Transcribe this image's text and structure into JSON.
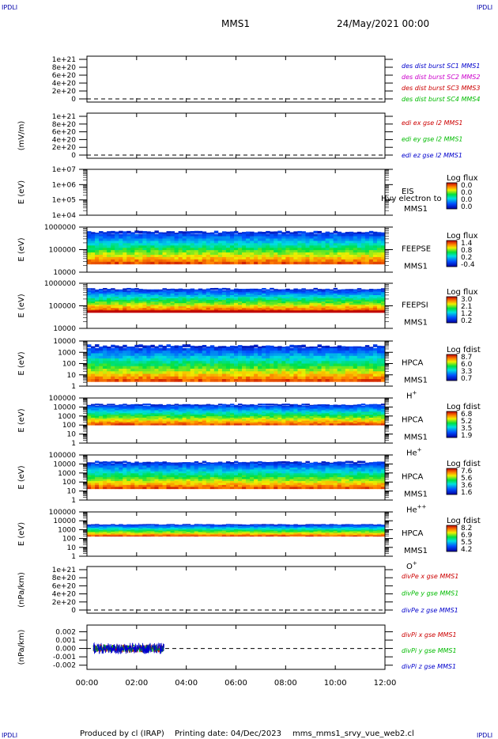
{
  "header": {
    "corner_label": "IPDLI",
    "mission": "MMS1",
    "date": "24/May/2021 00:00"
  },
  "footer": {
    "produced_by": "Produced by cl (IRAP)",
    "printing_date": "Printing date: 04/Dec/2023",
    "script": "mms_mms1_srvy_vue_web2.cl"
  },
  "chart_data": {
    "type": "multi-panel time series / spectrogram",
    "time_ticks": [
      "00:00",
      "02:00",
      "04:00",
      "06:00",
      "08:00",
      "10:00",
      "12:00"
    ],
    "x_range_hours": [
      0,
      12
    ],
    "panels": [
      {
        "id": "des",
        "kind": "line",
        "ylabel": "",
        "yticks": [
          "1e+21",
          "8e+20",
          "6e+20",
          "4e+20",
          "2e+20",
          "0"
        ],
        "legend": [
          {
            "label": "des dist burst SC1 MMS1",
            "color": "#0000cc"
          },
          {
            "label": "des dist burst SC2 MMS2",
            "color": "#cc00cc"
          },
          {
            "label": "des dist burst SC3 MMS3",
            "color": "#cc0000"
          },
          {
            "label": "des dist burst SC4 MMS4",
            "color": "#00bb00"
          }
        ],
        "zero_line": true
      },
      {
        "id": "edi",
        "kind": "line",
        "ylabel": "(mV/m)",
        "yticks": [
          "1e+21",
          "8e+20",
          "6e+20",
          "4e+20",
          "2e+20",
          "0"
        ],
        "legend": [
          {
            "label": "edi ex gse l2 MMS1",
            "color": "#cc0000"
          },
          {
            "label": "edi ey gse l2 MMS1",
            "color": "#00bb00"
          },
          {
            "label": "edi ez gse l2 MMS1",
            "color": "#0000cc"
          }
        ],
        "zero_line": true
      },
      {
        "id": "eis",
        "kind": "spectrogram",
        "ylabel": "E (eV)",
        "yticks": [
          "1e+07",
          "1e+06",
          "1e+05",
          "1e+04"
        ],
        "instrument": "EIS",
        "species_note": "Hvy electron to",
        "sc": "MMS1",
        "cbar_title": "Log flux",
        "cbar_ticks": [
          "0.0",
          "0.0",
          "0.0",
          "0.0"
        ],
        "band": null
      },
      {
        "id": "feepse",
        "kind": "spectrogram",
        "ylabel": "E (eV)",
        "yticks": [
          "1000000",
          "100000",
          "10000"
        ],
        "instrument": "FEEPSE",
        "sc": "MMS1",
        "cbar_title": "Log flux",
        "cbar_ticks": [
          "1.4",
          "0.8",
          "0.2",
          "-0.4"
        ],
        "band": [
          0.1,
          0.82
        ]
      },
      {
        "id": "feepsi",
        "kind": "spectrogram",
        "ylabel": "E (eV)",
        "yticks": [
          "1000000",
          "100000",
          "10000"
        ],
        "instrument": "FEEPSI",
        "sc": "MMS1",
        "cbar_title": "Log flux",
        "cbar_ticks": [
          "3.0",
          "2.1",
          "1.2",
          "0.2"
        ],
        "band": [
          0.12,
          0.62
        ]
      },
      {
        "id": "hpca_h",
        "kind": "spectrogram",
        "ylabel": "E (eV)",
        "yticks": [
          "10000",
          "1000",
          "100",
          "10",
          "1"
        ],
        "instrument": "HPCA",
        "sc": "MMS1",
        "species": "H",
        "species_sup": "+",
        "cbar_title": "Log fdist",
        "cbar_ticks": [
          "8.7",
          "6.0",
          "3.3",
          "0.7"
        ],
        "band": [
          0.1,
          0.9
        ]
      },
      {
        "id": "hpca_he",
        "kind": "spectrogram",
        "ylabel": "E (eV)",
        "yticks": [
          "100000",
          "10000",
          "1000",
          "100",
          "10",
          "1"
        ],
        "instrument": "HPCA",
        "sc": "MMS1",
        "species": "He",
        "species_sup": "+",
        "cbar_title": "Log fdist",
        "cbar_ticks": [
          "6.8",
          "5.2",
          "3.5",
          "1.9"
        ],
        "band": [
          0.14,
          0.6
        ]
      },
      {
        "id": "hpca_hepp",
        "kind": "spectrogram",
        "ylabel": "E (eV)",
        "yticks": [
          "100000",
          "10000",
          "1000",
          "100",
          "10",
          "1"
        ],
        "instrument": "HPCA",
        "sc": "MMS1",
        "species": "He",
        "species_sup": "++",
        "cbar_title": "Log fdist",
        "cbar_ticks": [
          "7.6",
          "5.6",
          "3.6",
          "1.6"
        ],
        "band": [
          0.15,
          0.75
        ]
      },
      {
        "id": "hpca_o",
        "kind": "spectrogram",
        "ylabel": "E (eV)",
        "yticks": [
          "100000",
          "10000",
          "1000",
          "100",
          "10",
          "1"
        ],
        "instrument": "HPCA",
        "sc": "MMS1",
        "species": "O",
        "species_sup": "+",
        "cbar_title": "Log fdist",
        "cbar_ticks": [
          "8.2",
          "6.9",
          "5.5",
          "4.2"
        ],
        "band": [
          0.28,
          0.55
        ]
      },
      {
        "id": "divpe",
        "kind": "line",
        "ylabel": "(nPa/km)",
        "yticks": [
          "1e+21",
          "8e+20",
          "6e+20",
          "4e+20",
          "2e+20",
          "0"
        ],
        "legend": [
          {
            "label": "divPe x gse MMS1",
            "color": "#cc0000"
          },
          {
            "label": "divPe y gse MMS1",
            "color": "#00bb00"
          },
          {
            "label": "divPe z gse MMS1",
            "color": "#0000cc"
          }
        ],
        "zero_line": true
      },
      {
        "id": "divpi",
        "kind": "line",
        "ylabel": "(nPa/km)",
        "yticks": [
          "0.002",
          "0.001",
          "0.000",
          "-0.001",
          "-0.002"
        ],
        "ylim": [
          -0.0025,
          0.0028
        ],
        "legend": [
          {
            "label": "divPi x gse MMS1",
            "color": "#cc0000"
          },
          {
            "label": "divPi y gse MMS1",
            "color": "#00bb00"
          },
          {
            "label": "divPi z gse MMS1",
            "color": "#0000cc"
          }
        ],
        "zero_line": true,
        "data_time_range_hours": [
          0.25,
          3.1
        ],
        "amplitude": 0.0006
      }
    ]
  }
}
